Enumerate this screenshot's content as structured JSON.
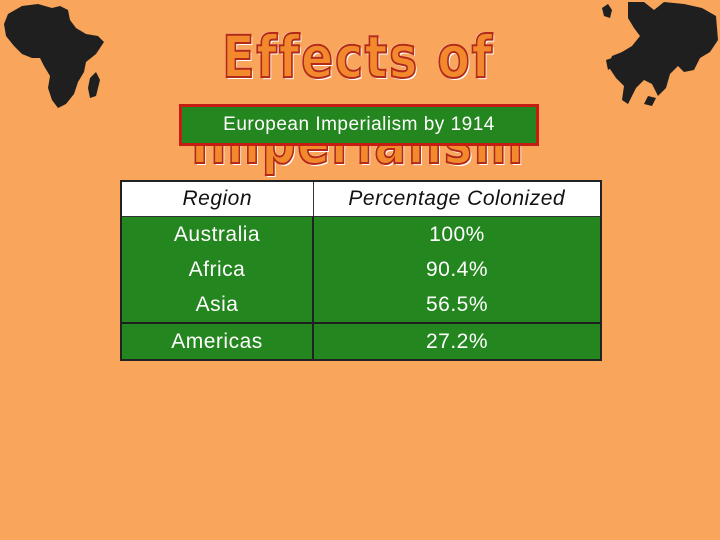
{
  "slide": {
    "title": "Effects of Imperialism",
    "subtitle": "European Imperialism by 1914"
  },
  "decorations": {
    "left_icon": "africa-map-silhouette",
    "right_icon": "europe-map-silhouette"
  },
  "table": {
    "headers": [
      "Region",
      "Percentage Colonized"
    ],
    "rows": [
      {
        "region": "Australia",
        "percent": "100%"
      },
      {
        "region": "Africa",
        "percent": "90.4%"
      },
      {
        "region": "Asia",
        "percent": "56.5%"
      },
      {
        "region": "Americas",
        "percent": "27.2%"
      }
    ]
  },
  "colors": {
    "background": "#f9a55b",
    "table_green": "#24861f",
    "title_border": "#c51c14"
  }
}
